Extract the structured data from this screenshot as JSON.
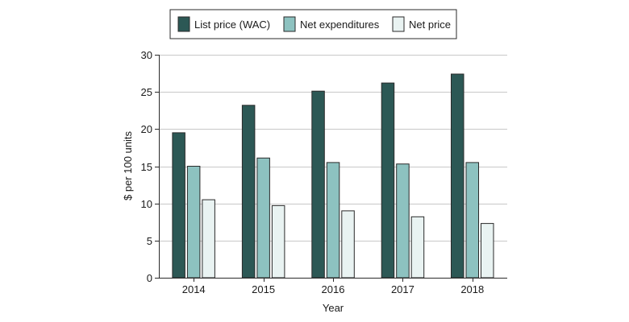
{
  "chart_data": {
    "type": "bar",
    "title": "",
    "xlabel": "Year",
    "ylabel": "$ per 100 units",
    "categories": [
      "2014",
      "2015",
      "2016",
      "2017",
      "2018"
    ],
    "ylim": [
      0,
      30
    ],
    "yticks": [
      0,
      5,
      10,
      15,
      20,
      25,
      30
    ],
    "grid": true,
    "legend_position": "top-center",
    "series": [
      {
        "name": "List price (WAC)",
        "color": "#2c5855",
        "values": [
          19.5,
          23.2,
          25.1,
          26.2,
          27.4
        ]
      },
      {
        "name": "Net expenditures",
        "color": "#8dc2c0",
        "values": [
          15.0,
          16.1,
          15.5,
          15.3,
          15.5
        ]
      },
      {
        "name": "Net price",
        "color": "#e9f3f2",
        "values": [
          10.5,
          9.7,
          9.0,
          8.2,
          7.3
        ]
      }
    ]
  }
}
